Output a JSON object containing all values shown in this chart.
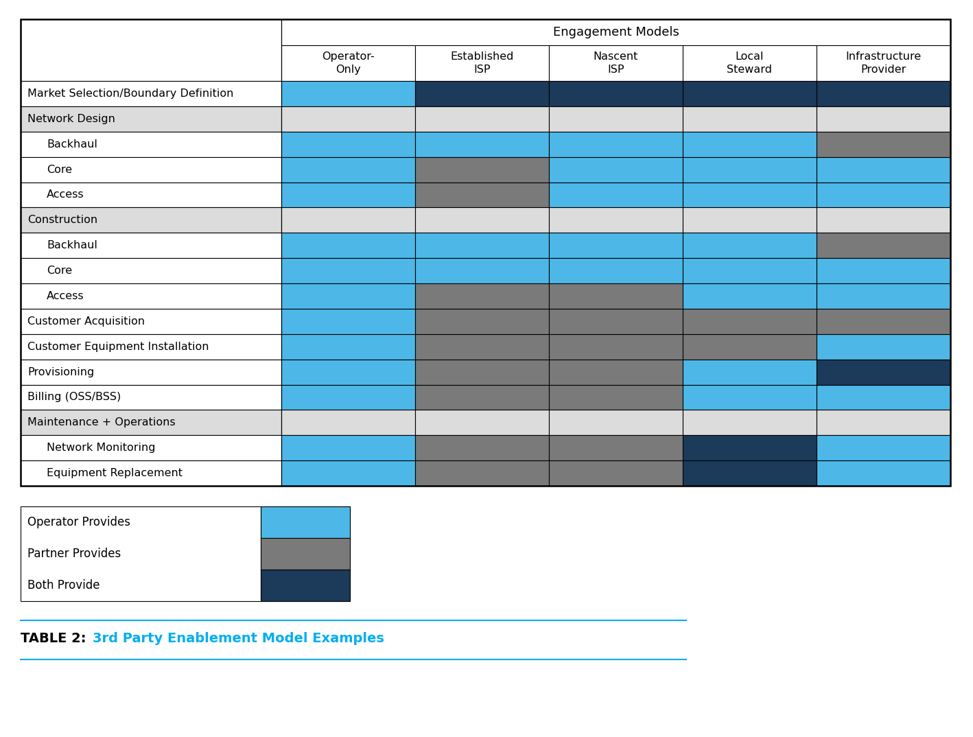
{
  "title_label": "TABLE 2:",
  "title_text": "3rd Party Enablement Model Examples",
  "engagement_models_header": "Engagement Models",
  "col_headers_line1": [
    "Operator-",
    "Established",
    "Nascent",
    "Local",
    "Infrastructure"
  ],
  "col_headers_line2": [
    "Only",
    "ISP",
    "ISP",
    "Steward",
    "Provider"
  ],
  "row_labels": [
    "Market Selection/Boundary Definition",
    "Network Design",
    "Backhaul",
    "Core",
    "Access",
    "Construction",
    "Backhaul",
    "Core",
    "Access",
    "Customer Acquisition",
    "Customer Equipment Installation",
    "Provisioning",
    "Billing (OSS/BSS)",
    "Maintenance + Operations",
    "Network Monitoring",
    "Equipment Replacement"
  ],
  "row_indent": [
    false,
    false,
    true,
    true,
    true,
    false,
    true,
    true,
    true,
    false,
    false,
    false,
    false,
    false,
    true,
    true
  ],
  "section_rows": [
    1,
    5,
    13
  ],
  "colors": {
    "blue": "#4DB8E8",
    "dark_blue": "#1C3A5A",
    "gray": "#7A7A7A",
    "light_gray": "#DCDCDC",
    "white": "#FFFFFF",
    "cyan_text": "#00AEEF"
  },
  "cell_colors": [
    [
      "blue",
      "dark_blue",
      "dark_blue",
      "dark_blue",
      "dark_blue"
    ],
    [
      "lg",
      "lg",
      "lg",
      "lg",
      "lg"
    ],
    [
      "blue",
      "blue",
      "blue",
      "blue",
      "gray"
    ],
    [
      "blue",
      "gray",
      "blue",
      "blue",
      "blue"
    ],
    [
      "blue",
      "gray",
      "blue",
      "blue",
      "blue"
    ],
    [
      "lg",
      "lg",
      "lg",
      "lg",
      "lg"
    ],
    [
      "blue",
      "blue",
      "blue",
      "blue",
      "gray"
    ],
    [
      "blue",
      "blue",
      "blue",
      "blue",
      "blue"
    ],
    [
      "blue",
      "gray",
      "gray",
      "blue",
      "blue"
    ],
    [
      "blue",
      "gray",
      "gray",
      "gray",
      "gray"
    ],
    [
      "blue",
      "gray",
      "gray",
      "gray",
      "blue"
    ],
    [
      "blue",
      "gray",
      "gray",
      "blue",
      "dark_blue"
    ],
    [
      "blue",
      "gray",
      "gray",
      "blue",
      "blue"
    ],
    [
      "lg",
      "lg",
      "lg",
      "lg",
      "lg"
    ],
    [
      "blue",
      "gray",
      "gray",
      "dark_blue",
      "blue"
    ],
    [
      "blue",
      "gray",
      "gray",
      "dark_blue",
      "blue"
    ]
  ],
  "legend_items": [
    {
      "label": "Operator Provides",
      "color": "blue"
    },
    {
      "label": "Partner Provides",
      "color": "gray"
    },
    {
      "label": "Both Provide",
      "color": "dark_blue"
    }
  ]
}
